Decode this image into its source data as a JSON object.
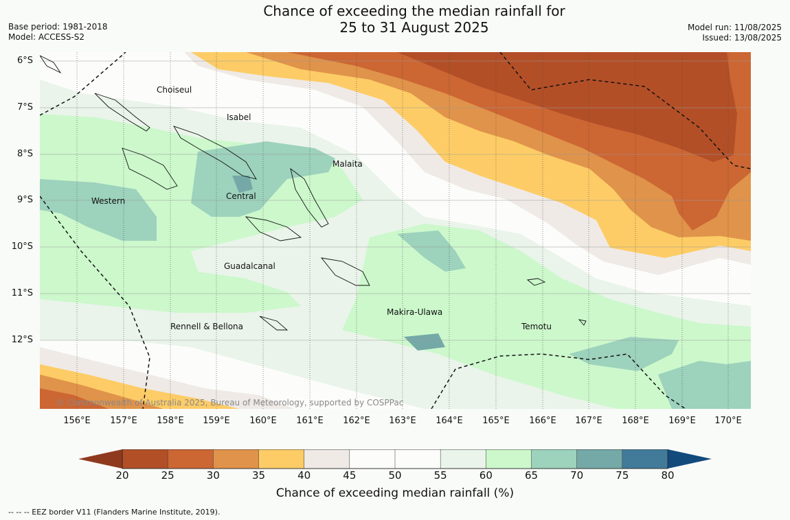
{
  "title": {
    "line1": "Chance of exceeding the median rainfall for",
    "line2": "25 to 31 August 2025"
  },
  "meta_left": {
    "base_period": "Base period: 1981-2018",
    "model": "Model: ACCESS-S2"
  },
  "meta_right": {
    "model_run": "Model run: 11/08/2025",
    "issued": "Issued: 13/08/2025"
  },
  "lat_labels": [
    "6°S",
    "7°S",
    "8°S",
    "9°S",
    "10°S",
    "11°S",
    "12°S"
  ],
  "lon_labels": [
    "156°E",
    "157°E",
    "158°E",
    "159°E",
    "160°E",
    "161°E",
    "162°E",
    "163°E",
    "164°E",
    "165°E",
    "166°E",
    "167°E",
    "168°E",
    "169°E",
    "170°E"
  ],
  "places": {
    "choiseul": "Choiseul",
    "isabel": "Isabel",
    "malaita": "Malaita",
    "western": "Western",
    "central": "Central",
    "guadalcanal": "Guadalcanal",
    "makira": "Makira-Ulawa",
    "temotu": "Temotu",
    "rennell": "Rennell & Bellona"
  },
  "copyright": "© Commonwealth of Australia 2025, Bureau of Meteorology, supported by COSPPac",
  "colorbar": {
    "ticks": [
      "20",
      "25",
      "30",
      "35",
      "40",
      "45",
      "50",
      "55",
      "60",
      "65",
      "70",
      "75",
      "80"
    ],
    "colors": [
      "#b34f27",
      "#cc6633",
      "#e0934a",
      "#fdcc66",
      "#efeae6",
      "#fcfdfb",
      "#fcfdfb",
      "#eaf4ea",
      "#ccf8cc",
      "#9dd2bc",
      "#74a9a7",
      "#427b9a"
    ],
    "under_color": "#8f3a1e",
    "over_color": "#134a7c",
    "label": "Chance of exceeding median rainfall (%)"
  },
  "footnote": "--  --  -- EEZ border V11 (Flanders Marine Institute, 2019)."
}
